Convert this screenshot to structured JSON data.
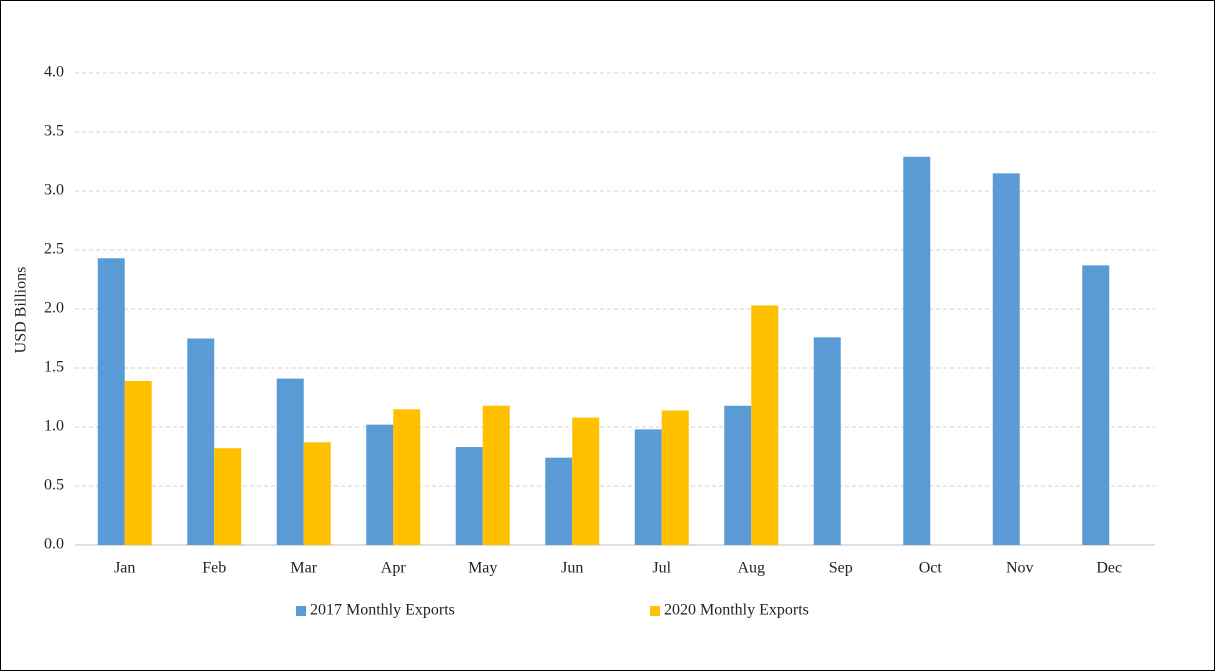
{
  "chart_data": {
    "type": "bar",
    "y_label": "USD Billions",
    "categories": [
      "Jan",
      "Feb",
      "Mar",
      "Apr",
      "May",
      "Jun",
      "Jul",
      "Aug",
      "Sep",
      "Oct",
      "Nov",
      "Dec"
    ],
    "series": [
      {
        "name": "2017 Monthly Exports",
        "color": "#5b9bd5",
        "values": [
          2.43,
          1.75,
          1.41,
          1.02,
          0.83,
          0.74,
          0.98,
          1.18,
          1.76,
          3.29,
          3.15,
          2.37
        ]
      },
      {
        "name": "2020 Monthly Exports",
        "color": "#ffc000",
        "values": [
          1.39,
          0.82,
          0.87,
          1.15,
          1.18,
          1.08,
          1.14,
          2.03,
          null,
          null,
          null,
          null
        ]
      }
    ],
    "ylim": [
      0,
      4
    ],
    "yticks": [
      {
        "value": 0,
        "label": "0.0"
      },
      0.5,
      {
        "value": 1,
        "label": "1.0"
      },
      1.5,
      {
        "value": 2,
        "label": "2.0"
      },
      2.5,
      {
        "value": 3,
        "label": "3.0"
      },
      3.5,
      {
        "value": 4,
        "label": "4.0"
      }
    ],
    "grid": true,
    "legend": "bottom"
  }
}
